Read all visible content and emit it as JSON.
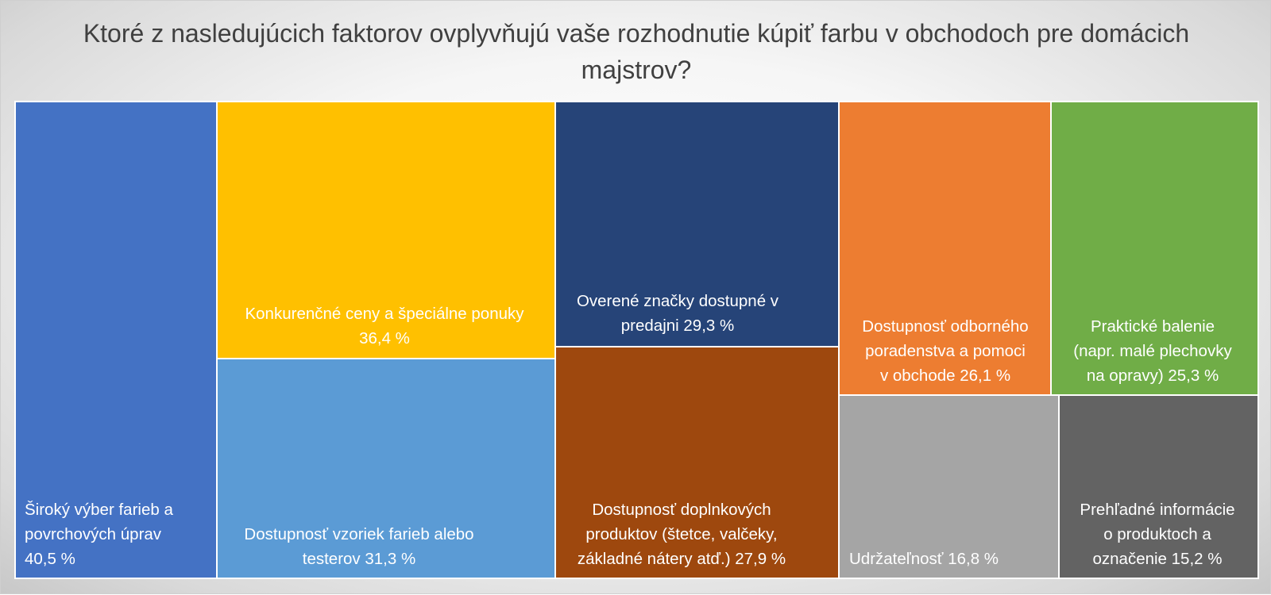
{
  "chart_data": {
    "type": "treemap",
    "title": "Ktoré z nasledujúcich faktorov ovplyvňujú vaše rozhodnutie kúpiť farbu v obchodoch pre domácich majstrov?",
    "unit": "%",
    "items": [
      {
        "label": "Široký výber farieb a povrchových úprav 40,5 %",
        "lines": [
          "Široký výber farieb a",
          "povrchových úprav",
          "40,5 %"
        ],
        "value": 40.5,
        "color": "#4472C4"
      },
      {
        "label": "Konkurenčné ceny a špeciálne ponuky 36,4 %",
        "lines": [
          "Konkurenčné ceny a špeciálne ponuky",
          "36,4 %"
        ],
        "value": 36.4,
        "color": "#FFC000"
      },
      {
        "label": "Dostupnosť vzoriek farieb alebo testerov 31,3 %",
        "lines": [
          "Dostupnosť vzoriek farieb alebo",
          "testerov  31,3 %"
        ],
        "value": 31.3,
        "color": "#5B9BD5"
      },
      {
        "label": "Overené značky dostupné v predajni 29,3 %",
        "lines": [
          "Overené značky dostupné v",
          "predajni 29,3 %"
        ],
        "value": 29.3,
        "color": "#264478"
      },
      {
        "label": "Dostupnosť doplnkových produktov (štetce, valčeky, základné nátery atď.) 27,9 %",
        "lines": [
          "Dostupnosť doplnkových",
          "produktov (štetce, valčeky,",
          "základné nátery atď.) 27,9 %"
        ],
        "value": 27.9,
        "color": "#9E480E"
      },
      {
        "label": "Dostupnosť odborného poradenstva a pomoci v obchode 26,1 %",
        "lines": [
          "Dostupnosť odborného",
          "poradenstva a pomoci",
          "v obchode 26,1 %"
        ],
        "value": 26.1,
        "color": "#ED7D31"
      },
      {
        "label": "Praktické balenie (napr. malé plechovky na opravy) 25,3 %",
        "lines": [
          "Praktické balenie",
          "(napr. malé plechovky",
          "na opravy) 25,3 %"
        ],
        "value": 25.3,
        "color": "#70AD47"
      },
      {
        "label": "Udržateľnosť 16,8 %",
        "lines": [
          "Udržateľnosť 16,8 %"
        ],
        "value": 16.8,
        "color": "#A5A5A5"
      },
      {
        "label": "Prehľadné informácie o produktoch a označenie 15,2 %",
        "lines": [
          "Prehľadné informácie",
          "o produktoch a",
          "označenie 15,2 %"
        ],
        "value": 15.2,
        "color": "#636363"
      }
    ]
  }
}
